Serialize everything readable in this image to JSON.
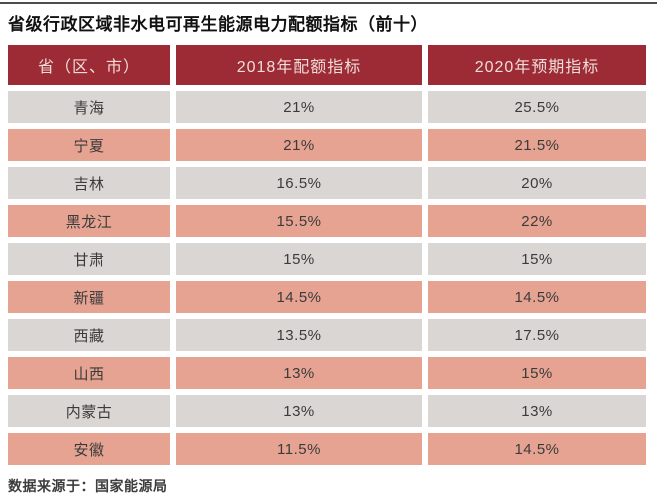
{
  "page": {
    "title": "省级行政区域非水电可再生能源电力配额指标（前十）",
    "source_note": "数据来源于：国家能源局"
  },
  "table": {
    "columns": [
      "省（区、市）",
      "2018年配额指标",
      "2020年预期指标"
    ],
    "rows": [
      {
        "province": "青海",
        "quota_2018": "21%",
        "expected_2020": "25.5%"
      },
      {
        "province": "宁夏",
        "quota_2018": "21%",
        "expected_2020": "21.5%"
      },
      {
        "province": "吉林",
        "quota_2018": "16.5%",
        "expected_2020": "20%"
      },
      {
        "province": "黑龙江",
        "quota_2018": "15.5%",
        "expected_2020": "22%"
      },
      {
        "province": "甘肃",
        "quota_2018": "15%",
        "expected_2020": "15%"
      },
      {
        "province": "新疆",
        "quota_2018": "14.5%",
        "expected_2020": "14.5%"
      },
      {
        "province": "西藏",
        "quota_2018": "13.5%",
        "expected_2020": "17.5%"
      },
      {
        "province": "山西",
        "quota_2018": "13%",
        "expected_2020": "15%"
      },
      {
        "province": "内蒙古",
        "quota_2018": "13%",
        "expected_2020": "13%"
      },
      {
        "province": "安徽",
        "quota_2018": "11.5%",
        "expected_2020": "14.5%"
      }
    ]
  },
  "chart_data": {
    "type": "table",
    "title": "省级行政区域非水电可再生能源电力配额指标（前十）",
    "columns": [
      "省（区、市）",
      "2018年配额指标",
      "2020年预期指标"
    ],
    "categories": [
      "青海",
      "宁夏",
      "吉林",
      "黑龙江",
      "甘肃",
      "新疆",
      "西藏",
      "山西",
      "内蒙古",
      "安徽"
    ],
    "series": [
      {
        "name": "2018年配额指标",
        "unit": "%",
        "values": [
          21,
          21,
          16.5,
          15.5,
          15,
          14.5,
          13.5,
          13,
          13,
          11.5
        ]
      },
      {
        "name": "2020年预期指标",
        "unit": "%",
        "values": [
          25.5,
          21.5,
          20,
          22,
          15,
          14.5,
          17.5,
          15,
          13,
          14.5
        ]
      }
    ],
    "source": "数据来源于：国家能源局"
  },
  "colors": {
    "header_bg": "#9c2b35",
    "header_text": "#f0dcd9",
    "row_gray": "#d9d6d4",
    "row_salmon": "#e6a392",
    "cell_text": "#3b3b3b",
    "top_rule": "#4d4d4d"
  }
}
